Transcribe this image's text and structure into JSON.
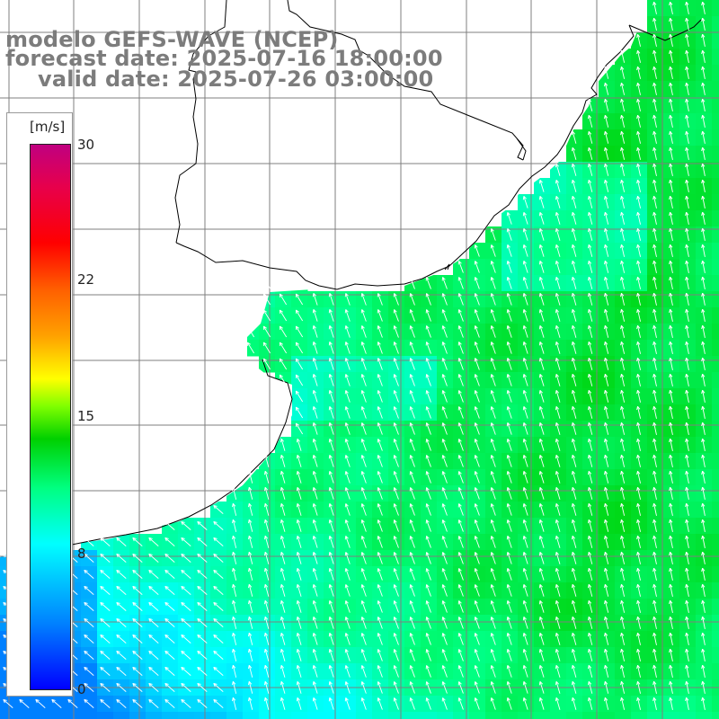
{
  "title": {
    "line1": "modelo GEFS-WAVE (NCEP)",
    "line2": "forecast date: 2025-07-16 18:00:00",
    "line3": "valid date: 2025-07-26 03:00:00"
  },
  "colorbar": {
    "unit": "[m/s]",
    "ticks": [
      {
        "label": "30",
        "value": 30
      },
      {
        "label": "22",
        "value": 22
      },
      {
        "label": "15",
        "value": 15
      },
      {
        "label": "8",
        "value": 8
      },
      {
        "label": "0",
        "value": 0
      }
    ],
    "range": [
      0,
      30
    ]
  },
  "colors": {
    "land": "#ffffff",
    "coast": "#000000",
    "grid": "#808080",
    "arrow": "#ffffff"
  },
  "wind_field": {
    "description_units": "m/s",
    "arrow_direction": "from south-southeast (arrows point north-northwest)",
    "typical_speed_offshore": 11,
    "typical_speed_nearshore": 8
  }
}
